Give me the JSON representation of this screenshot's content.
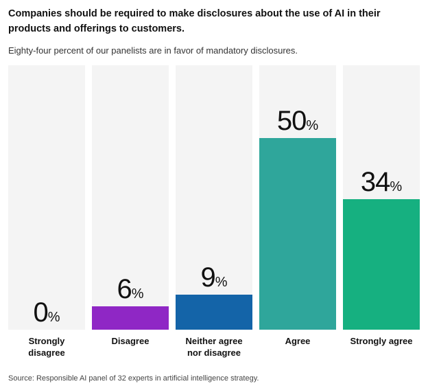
{
  "header": {
    "title": "Companies should be required to make disclosures about the use of AI in their products and offerings to customers.",
    "subtitle": "Eighty-four percent of our panelists are in favor of mandatory disclosures."
  },
  "chart_data": {
    "type": "bar",
    "title": "Companies should be required to make disclosures about the use of AI in their products and offerings to customers.",
    "subtitle": "Eighty-four percent of our panelists are in favor of mandatory disclosures.",
    "categories": [
      "Strongly disagree",
      "Disagree",
      "Neither agree nor disagree",
      "Agree",
      "Strongly agree"
    ],
    "values": [
      0,
      6,
      9,
      50,
      34
    ],
    "unit": "%",
    "bar_colors": [
      null,
      "#8f27c5",
      "#1464a8",
      "#2fa69b",
      "#16b080"
    ],
    "track_color": "#f4f4f4",
    "ylim": [
      0,
      69
    ],
    "grid": false,
    "legend": "none",
    "value_labels": "above-bars"
  },
  "footer": {
    "source": "Source: Responsible AI panel of 32 experts in artificial intelligence strategy."
  }
}
